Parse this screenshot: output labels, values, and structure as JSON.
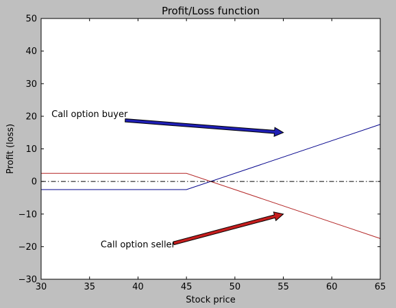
{
  "chart_data": {
    "type": "line",
    "title": "Profit/Loss function",
    "xlabel": "Stock price",
    "ylabel": "Profit (loss)",
    "xlim": [
      30,
      65
    ],
    "ylim": [
      -30,
      50
    ],
    "xticks": [
      30,
      35,
      40,
      45,
      50,
      55,
      60,
      65
    ],
    "yticks": [
      -30,
      -20,
      -10,
      0,
      10,
      20,
      30,
      40,
      50
    ],
    "grid": false,
    "series": [
      {
        "color": "#00008b",
        "x": [
          30,
          45,
          65
        ],
        "y": [
          -2.5,
          -2.5,
          17.5
        ]
      },
      {
        "color": "#b22222",
        "x": [
          30,
          45,
          65
        ],
        "y": [
          2.5,
          2.5,
          -17.5
        ]
      },
      {
        "color": "#000000",
        "style": "dashdot",
        "x": [
          30,
          65
        ],
        "y": [
          0,
          0
        ]
      }
    ],
    "annotations": [
      {
        "text": "Call option buyer",
        "text_x": 35,
        "text_y": 20,
        "arrow_to": [
          55,
          15
        ],
        "arrow_color": "#1f1fb4"
      },
      {
        "text": "Call option seller",
        "text_x": 40,
        "text_y": -20,
        "arrow_to": [
          55,
          -10
        ],
        "arrow_color": "#c41e1e"
      }
    ]
  }
}
